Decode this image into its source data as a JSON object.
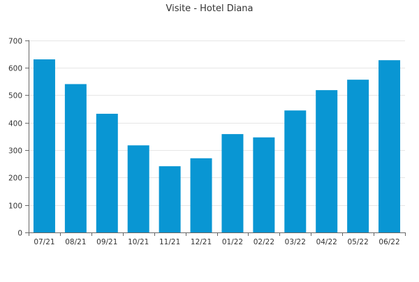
{
  "chart_data": {
    "type": "bar",
    "title": "Visite - Hotel Diana",
    "categories": [
      "07/21",
      "08/21",
      "09/21",
      "10/21",
      "11/21",
      "12/21",
      "01/22",
      "02/22",
      "03/22",
      "04/22",
      "05/22",
      "06/22"
    ],
    "values": [
      630,
      540,
      432,
      317,
      241,
      270,
      358,
      346,
      444,
      518,
      556,
      627
    ],
    "ylim": [
      0,
      700
    ],
    "yticks": [
      "0",
      "100",
      "200",
      "300",
      "400",
      "500",
      "600",
      "700"
    ],
    "grid": "horizontal",
    "colors": {
      "bar": "#0996d3"
    }
  }
}
